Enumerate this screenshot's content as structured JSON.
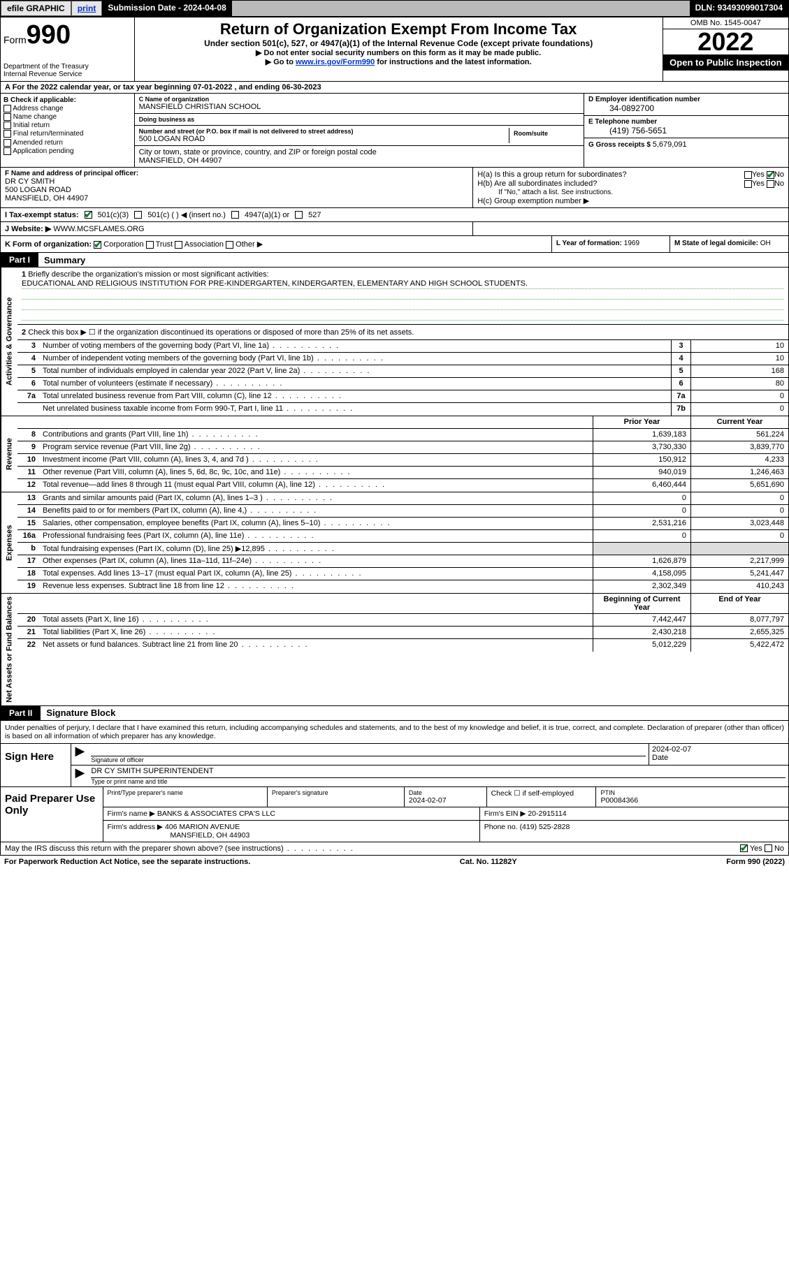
{
  "topbar": {
    "efile": "efile GRAPHIC",
    "print": "print",
    "subdate_lbl": "Submission Date - ",
    "subdate": "2024-04-08",
    "dln_lbl": "DLN: ",
    "dln": "93493099017304"
  },
  "header": {
    "form_word": "Form",
    "form_num": "990",
    "dept": "Department of the Treasury",
    "irs": "Internal Revenue Service",
    "title": "Return of Organization Exempt From Income Tax",
    "subtitle": "Under section 501(c), 527, or 4947(a)(1) of the Internal Revenue Code (except private foundations)",
    "instr1": "▶ Do not enter social security numbers on this form as it may be made public.",
    "instr2_pre": "▶ Go to ",
    "instr2_link": "www.irs.gov/Form990",
    "instr2_post": " for instructions and the latest information.",
    "omb": "OMB No. 1545-0047",
    "year": "2022",
    "openpub": "Open to Public Inspection"
  },
  "row_a": "A For the 2022 calendar year, or tax year beginning 07-01-2022  , and ending 06-30-2023",
  "col_b": {
    "hdr": "B Check if applicable:",
    "opts": [
      "Address change",
      "Name change",
      "Initial return",
      "Final return/terminated",
      "Amended return",
      "Application pending"
    ]
  },
  "col_c": {
    "name_lbl": "C Name of organization",
    "name": "MANSFIELD CHRISTIAN SCHOOL",
    "dba_lbl": "Doing business as",
    "dba": "",
    "addr_lbl": "Number and street (or P.O. box if mail is not delivered to street address)",
    "room_lbl": "Room/suite",
    "addr": "500 LOGAN ROAD",
    "city_lbl": "City or town, state or province, country, and ZIP or foreign postal code",
    "city": "MANSFIELD, OH  44907"
  },
  "col_d": {
    "ein_lbl": "D Employer identification number",
    "ein": "34-0892700",
    "tel_lbl": "E Telephone number",
    "tel": "(419) 756-5651",
    "gross_lbl": "G Gross receipts $ ",
    "gross": "5,679,091"
  },
  "fh": {
    "f_lbl": "F Name and address of principal officer:",
    "f_name": "DR CY SMITH",
    "f_addr1": "500 LOGAN ROAD",
    "f_addr2": "MANSFIELD, OH  44907",
    "ha": "H(a)  Is this a group return for subordinates?",
    "hb": "H(b)  Are all subordinates included?",
    "hb_note": "If \"No,\" attach a list. See instructions.",
    "hc": "H(c)  Group exemption number ▶",
    "yes": "Yes",
    "no": "No"
  },
  "row_i": {
    "lbl": "I   Tax-exempt status:",
    "o1": "501(c)(3)",
    "o2": "501(c) (  ) ◀ (insert no.)",
    "o3": "4947(a)(1) or",
    "o4": "527"
  },
  "row_j": {
    "lbl": "J   Website: ▶  ",
    "val": "WWW.MCSFLAMES.ORG"
  },
  "row_k": {
    "lbl": "K Form of organization:",
    "o1": "Corporation",
    "o2": "Trust",
    "o3": "Association",
    "o4": "Other ▶",
    "l_lbl": "L Year of formation: ",
    "l_val": "1969",
    "m_lbl": "M State of legal domicile: ",
    "m_val": "OH"
  },
  "part1": {
    "hdr": "Part I",
    "title": "Summary",
    "q1_lbl": "Briefly describe the organization's mission or most significant activities:",
    "q1_val": "EDUCATIONAL AND RELIGIOUS INSTITUTION FOR PRE-KINDERGARTEN, KINDERGARTEN, ELEMENTARY AND HIGH SCHOOL STUDENTS.",
    "q2": "Check this box ▶ ☐  if the organization discontinued its operations or disposed of more than 25% of its net assets.",
    "side1": "Activities & Governance",
    "side2": "Revenue",
    "side3": "Expenses",
    "side4": "Net Assets or Fund Balances",
    "col_prior": "Prior Year",
    "col_curr": "Current Year",
    "col_begin": "Beginning of Current Year",
    "col_end": "End of Year",
    "lines_gov": [
      {
        "n": "3",
        "d": "Number of voting members of the governing body (Part VI, line 1a)",
        "box": "3",
        "v": "10"
      },
      {
        "n": "4",
        "d": "Number of independent voting members of the governing body (Part VI, line 1b)",
        "box": "4",
        "v": "10"
      },
      {
        "n": "5",
        "d": "Total number of individuals employed in calendar year 2022 (Part V, line 2a)",
        "box": "5",
        "v": "168"
      },
      {
        "n": "6",
        "d": "Total number of volunteers (estimate if necessary)",
        "box": "6",
        "v": "80"
      },
      {
        "n": "7a",
        "d": "Total unrelated business revenue from Part VIII, column (C), line 12",
        "box": "7a",
        "v": "0"
      },
      {
        "n": "",
        "d": "Net unrelated business taxable income from Form 990-T, Part I, line 11",
        "box": "7b",
        "v": "0"
      }
    ],
    "lines_rev": [
      {
        "n": "8",
        "d": "Contributions and grants (Part VIII, line 1h)",
        "p": "1,639,183",
        "c": "561,224"
      },
      {
        "n": "9",
        "d": "Program service revenue (Part VIII, line 2g)",
        "p": "3,730,330",
        "c": "3,839,770"
      },
      {
        "n": "10",
        "d": "Investment income (Part VIII, column (A), lines 3, 4, and 7d )",
        "p": "150,912",
        "c": "4,233"
      },
      {
        "n": "11",
        "d": "Other revenue (Part VIII, column (A), lines 5, 6d, 8c, 9c, 10c, and 11e)",
        "p": "940,019",
        "c": "1,246,463"
      },
      {
        "n": "12",
        "d": "Total revenue—add lines 8 through 11 (must equal Part VIII, column (A), line 12)",
        "p": "6,460,444",
        "c": "5,651,690"
      }
    ],
    "lines_exp": [
      {
        "n": "13",
        "d": "Grants and similar amounts paid (Part IX, column (A), lines 1–3 )",
        "p": "0",
        "c": "0"
      },
      {
        "n": "14",
        "d": "Benefits paid to or for members (Part IX, column (A), line 4,)",
        "p": "0",
        "c": "0"
      },
      {
        "n": "15",
        "d": "Salaries, other compensation, employee benefits (Part IX, column (A), lines 5–10)",
        "p": "2,531,216",
        "c": "3,023,448"
      },
      {
        "n": "16a",
        "d": "Professional fundraising fees (Part IX, column (A), line 11e)",
        "p": "0",
        "c": "0"
      },
      {
        "n": "b",
        "d": "Total fundraising expenses (Part IX, column (D), line 25) ▶12,895",
        "p": "",
        "c": "",
        "shade": true
      },
      {
        "n": "17",
        "d": "Other expenses (Part IX, column (A), lines 11a–11d, 11f–24e)",
        "p": "1,626,879",
        "c": "2,217,999"
      },
      {
        "n": "18",
        "d": "Total expenses. Add lines 13–17 (must equal Part IX, column (A), line 25)",
        "p": "4,158,095",
        "c": "5,241,447"
      },
      {
        "n": "19",
        "d": "Revenue less expenses. Subtract line 18 from line 12",
        "p": "2,302,349",
        "c": "410,243"
      }
    ],
    "lines_net": [
      {
        "n": "20",
        "d": "Total assets (Part X, line 16)",
        "p": "7,442,447",
        "c": "8,077,797"
      },
      {
        "n": "21",
        "d": "Total liabilities (Part X, line 26)",
        "p": "2,430,218",
        "c": "2,655,325"
      },
      {
        "n": "22",
        "d": "Net assets or fund balances. Subtract line 21 from line 20",
        "p": "5,012,229",
        "c": "5,422,472"
      }
    ]
  },
  "part2": {
    "hdr": "Part II",
    "title": "Signature Block",
    "decl": "Under penalties of perjury, I declare that I have examined this return, including accompanying schedules and statements, and to the best of my knowledge and belief, it is true, correct, and complete. Declaration of preparer (other than officer) is based on all information of which preparer has any knowledge.",
    "sign_here": "Sign Here",
    "sig_of_officer": "Signature of officer",
    "date_lbl": "Date",
    "sig_date": "2024-02-07",
    "officer_name": "DR CY SMITH  SUPERINTENDENT",
    "officer_cap": "Type or print name and title",
    "paid_hdr": "Paid Preparer Use Only",
    "prep_name_lbl": "Print/Type preparer's name",
    "prep_sig_lbl": "Preparer's signature",
    "prep_date": "2024-02-07",
    "check_if": "Check ☐ if self-employed",
    "ptin_lbl": "PTIN",
    "ptin": "P00084366",
    "firm_name_lbl": "Firm's name    ▶ ",
    "firm_name": "BANKS & ASSOCIATES CPA'S LLC",
    "firm_ein_lbl": "Firm's EIN ▶ ",
    "firm_ein": "20-2915114",
    "firm_addr_lbl": "Firm's address ▶ ",
    "firm_addr1": "406 MARION AVENUE",
    "firm_addr2": "MANSFIELD, OH  44903",
    "phone_lbl": "Phone no. ",
    "phone": "(419) 525-2828",
    "may_irs": "May the IRS discuss this return with the preparer shown above? (see instructions)"
  },
  "footer": {
    "left": "For Paperwork Reduction Act Notice, see the separate instructions.",
    "mid": "Cat. No. 11282Y",
    "right": "Form 990 (2022)"
  },
  "colors": {
    "link": "#0033cc",
    "check": "#0a7a2a",
    "topbar_bg": "#b9b9b9",
    "shade": "#dddddd"
  }
}
